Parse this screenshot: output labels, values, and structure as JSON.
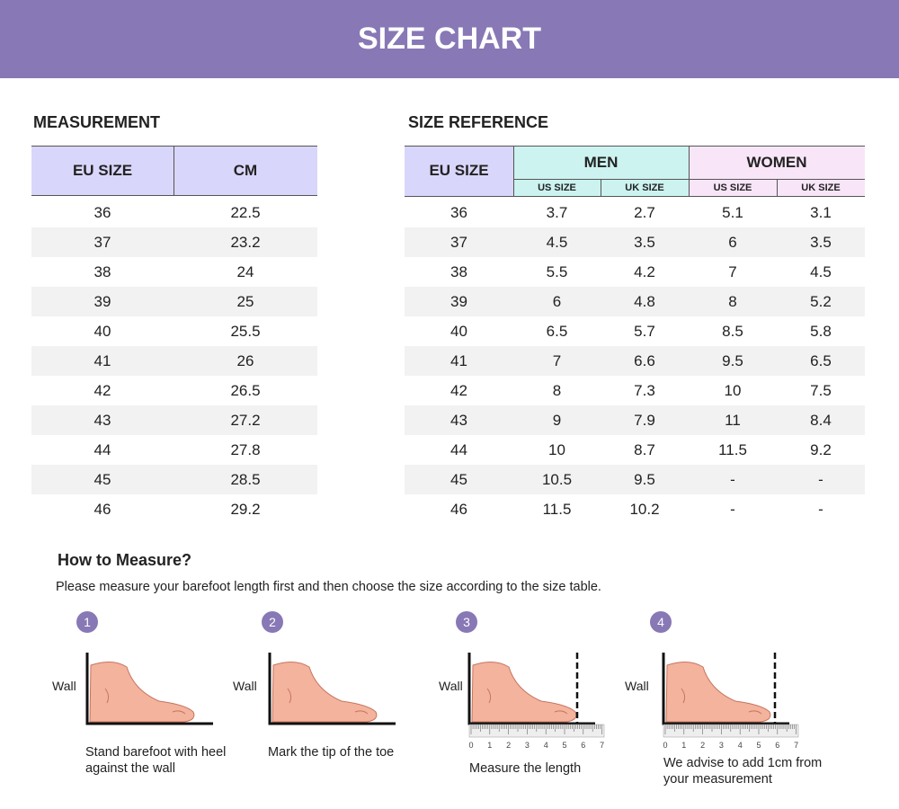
{
  "header": {
    "title": "SIZE CHART"
  },
  "measurement": {
    "title": "MEASUREMENT",
    "columns": [
      "EU SIZE",
      "CM"
    ],
    "rows": [
      [
        "36",
        "22.5"
      ],
      [
        "37",
        "23.2"
      ],
      [
        "38",
        "24"
      ],
      [
        "39",
        "25"
      ],
      [
        "40",
        "25.5"
      ],
      [
        "41",
        "26"
      ],
      [
        "42",
        "26.5"
      ],
      [
        "43",
        "27.2"
      ],
      [
        "44",
        "27.8"
      ],
      [
        "45",
        "28.5"
      ],
      [
        "46",
        "29.2"
      ]
    ]
  },
  "size_reference": {
    "title": "SIZE REFERENCE",
    "eu_header": "EU SIZE",
    "groups": [
      {
        "name": "MEN",
        "columns": [
          "US SIZE",
          "UK SIZE"
        ]
      },
      {
        "name": "WOMEN",
        "columns": [
          "US SIZE",
          "UK SIZE"
        ]
      }
    ],
    "rows": [
      [
        "36",
        "3.7",
        "2.7",
        "5.1",
        "3.1"
      ],
      [
        "37",
        "4.5",
        "3.5",
        "6",
        "3.5"
      ],
      [
        "38",
        "5.5",
        "4.2",
        "7",
        "4.5"
      ],
      [
        "39",
        "6",
        "4.8",
        "8",
        "5.2"
      ],
      [
        "40",
        "6.5",
        "5.7",
        "8.5",
        "5.8"
      ],
      [
        "41",
        "7",
        "6.6",
        "9.5",
        "6.5"
      ],
      [
        "42",
        "8",
        "7.3",
        "10",
        "7.5"
      ],
      [
        "43",
        "9",
        "7.9",
        "11",
        "8.4"
      ],
      [
        "44",
        "10",
        "8.7",
        "11.5",
        "9.2"
      ],
      [
        "45",
        "10.5",
        "9.5",
        "-",
        "-"
      ],
      [
        "46",
        "11.5",
        "10.2",
        "-",
        "-"
      ]
    ]
  },
  "how_to": {
    "title": "How to Measure?",
    "intro": "Please measure your barefoot length first and then choose the size according to the size table.",
    "ruler_labels": [
      "0",
      "1",
      "2",
      "3",
      "4",
      "5",
      "6",
      "7"
    ],
    "steps": [
      {
        "number": "1",
        "wall": "Wall",
        "caption": "Stand barefoot with heel against the wall"
      },
      {
        "number": "2",
        "wall": "Wall",
        "caption": "Mark the tip of the toe"
      },
      {
        "number": "3",
        "wall": "Wall",
        "caption": "Measure the length"
      },
      {
        "number": "4",
        "wall": "Wall",
        "caption": "We advise to add 1cm from your measurement"
      }
    ]
  }
}
